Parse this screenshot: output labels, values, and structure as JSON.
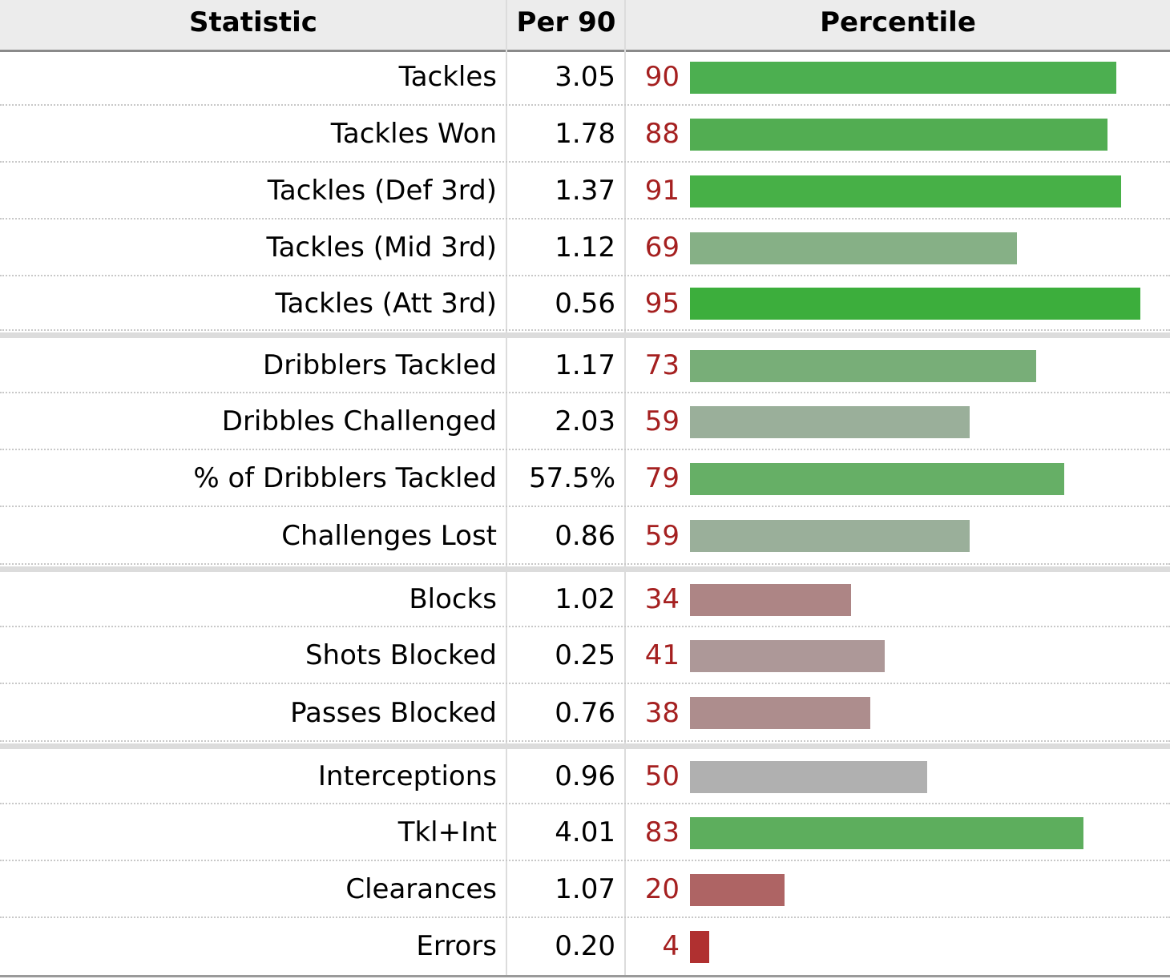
{
  "columns": {
    "statistic": "Statistic",
    "per90": "Per 90",
    "percentile": "Percentile"
  },
  "colors": {
    "percentile_text": "#a52020",
    "high_green": "#3cae3c",
    "mid_green": "#86b086",
    "neutral_grey": "#b0b0b0",
    "low_red": "#b03030"
  },
  "rows": [
    {
      "stat": "Tackles",
      "per90": "3.05",
      "pct": "90",
      "pct_value": 90,
      "bar_color": "#4caf50"
    },
    {
      "stat": "Tackles Won",
      "per90": "1.78",
      "pct": "88",
      "pct_value": 88,
      "bar_color": "#52ad52"
    },
    {
      "stat": "Tackles (Def 3rd)",
      "per90": "1.37",
      "pct": "91",
      "pct_value": 91,
      "bar_color": "#47b047"
    },
    {
      "stat": "Tackles (Mid 3rd)",
      "per90": "1.12",
      "pct": "69",
      "pct_value": 69,
      "bar_color": "#86b086"
    },
    {
      "stat": "Tackles (Att 3rd)",
      "per90": "0.56",
      "pct": "95",
      "pct_value": 95,
      "bar_color": "#3cae3c"
    },
    {
      "stat": "Dribblers Tackled",
      "per90": "1.17",
      "pct": "73",
      "pct_value": 73,
      "bar_color": "#78ae78"
    },
    {
      "stat": "Dribbles Challenged",
      "per90": "2.03",
      "pct": "59",
      "pct_value": 59,
      "bar_color": "#9aaf9a"
    },
    {
      "stat": "% of Dribblers Tackled",
      "per90": "57.5%",
      "pct": "79",
      "pct_value": 79,
      "bar_color": "#66af66"
    },
    {
      "stat": "Challenges Lost",
      "per90": "0.86",
      "pct": "59",
      "pct_value": 59,
      "bar_color": "#9aaf9a"
    },
    {
      "stat": "Blocks",
      "per90": "1.02",
      "pct": "34",
      "pct_value": 34,
      "bar_color": "#ad8585"
    },
    {
      "stat": "Shots Blocked",
      "per90": "0.25",
      "pct": "41",
      "pct_value": 41,
      "bar_color": "#ad9898"
    },
    {
      "stat": "Passes Blocked",
      "per90": "0.76",
      "pct": "38",
      "pct_value": 38,
      "bar_color": "#ad8d8d"
    },
    {
      "stat": "Interceptions",
      "per90": "0.96",
      "pct": "50",
      "pct_value": 50,
      "bar_color": "#b0b0b0"
    },
    {
      "stat": "Tkl+Int",
      "per90": "4.01",
      "pct": "83",
      "pct_value": 83,
      "bar_color": "#5dae5d"
    },
    {
      "stat": "Clearances",
      "per90": "1.07",
      "pct": "20",
      "pct_value": 20,
      "bar_color": "#ae6464"
    },
    {
      "stat": "Errors",
      "per90": "0.20",
      "pct": "4",
      "pct_value": 4,
      "bar_color": "#b03030"
    }
  ]
}
